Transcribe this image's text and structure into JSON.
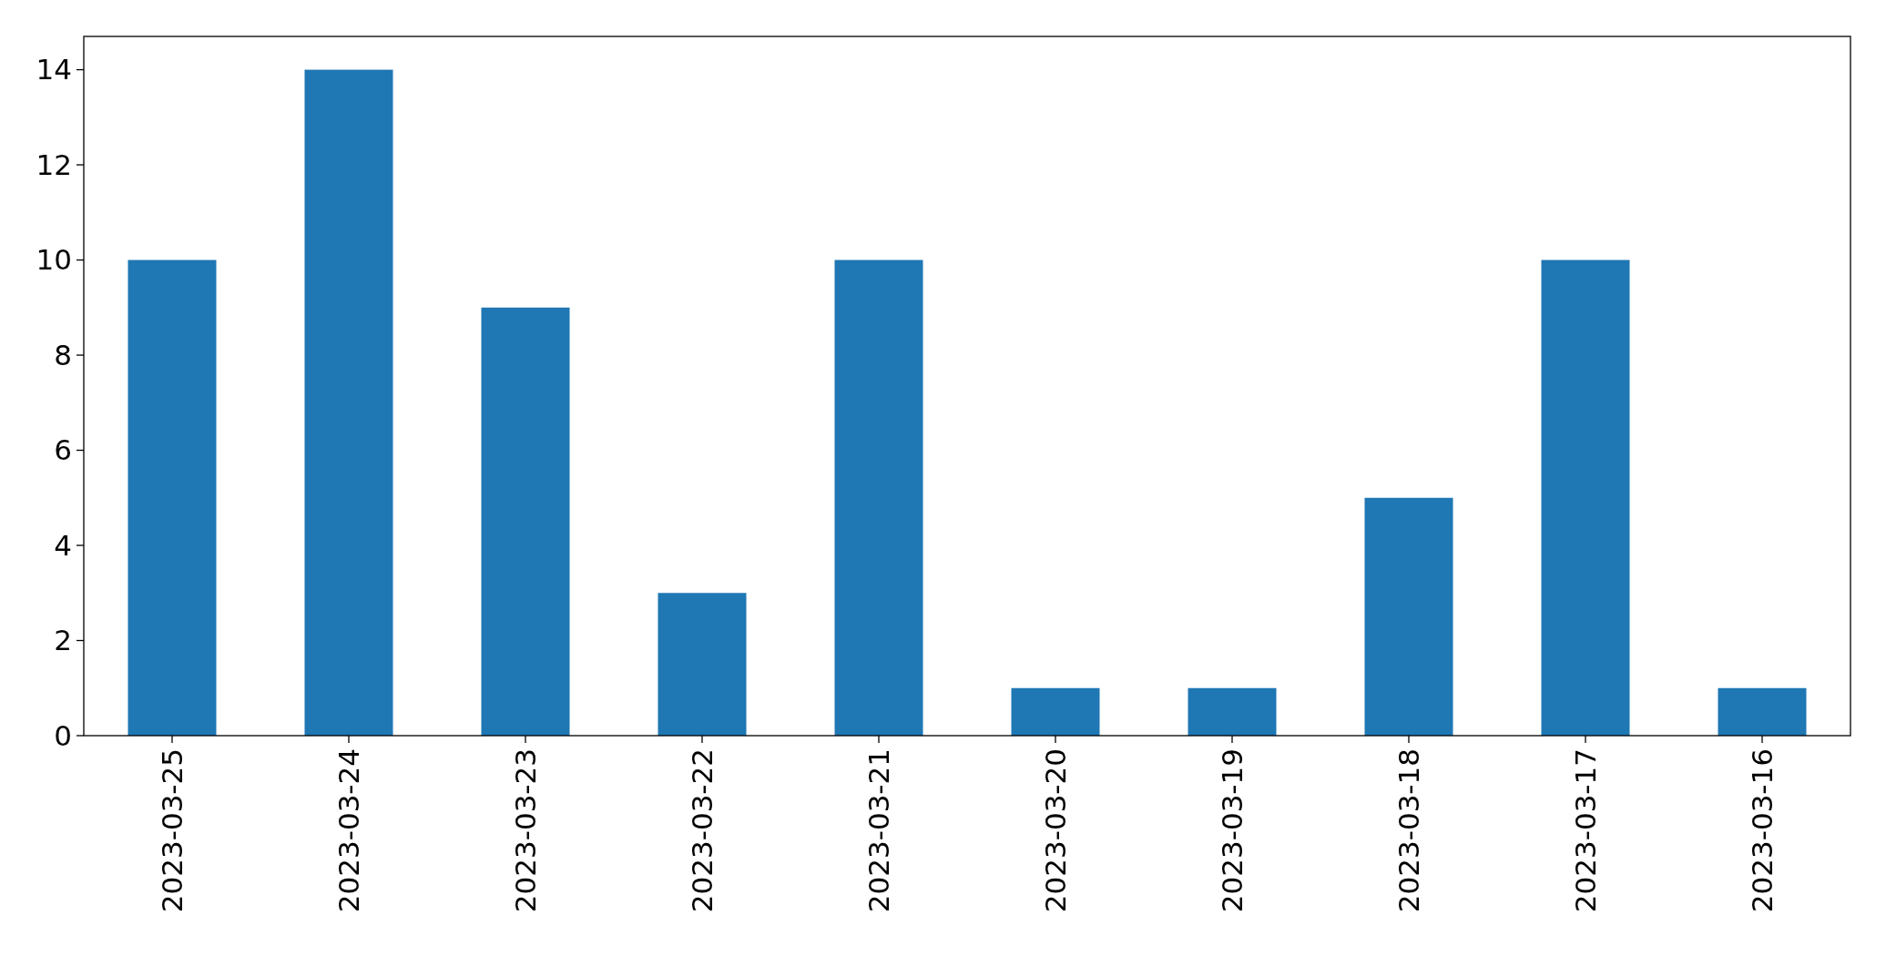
{
  "chart_data": {
    "type": "bar",
    "categories": [
      "2023-03-25",
      "2023-03-24",
      "2023-03-23",
      "2023-03-22",
      "2023-03-21",
      "2023-03-20",
      "2023-03-19",
      "2023-03-18",
      "2023-03-17",
      "2023-03-16"
    ],
    "values": [
      10,
      14,
      9,
      3,
      10,
      1,
      1,
      5,
      10,
      1
    ],
    "color": "#1f77b4",
    "ylim": [
      0,
      14.7
    ],
    "yticks": [
      0,
      2,
      4,
      6,
      8,
      10,
      12,
      14
    ]
  }
}
